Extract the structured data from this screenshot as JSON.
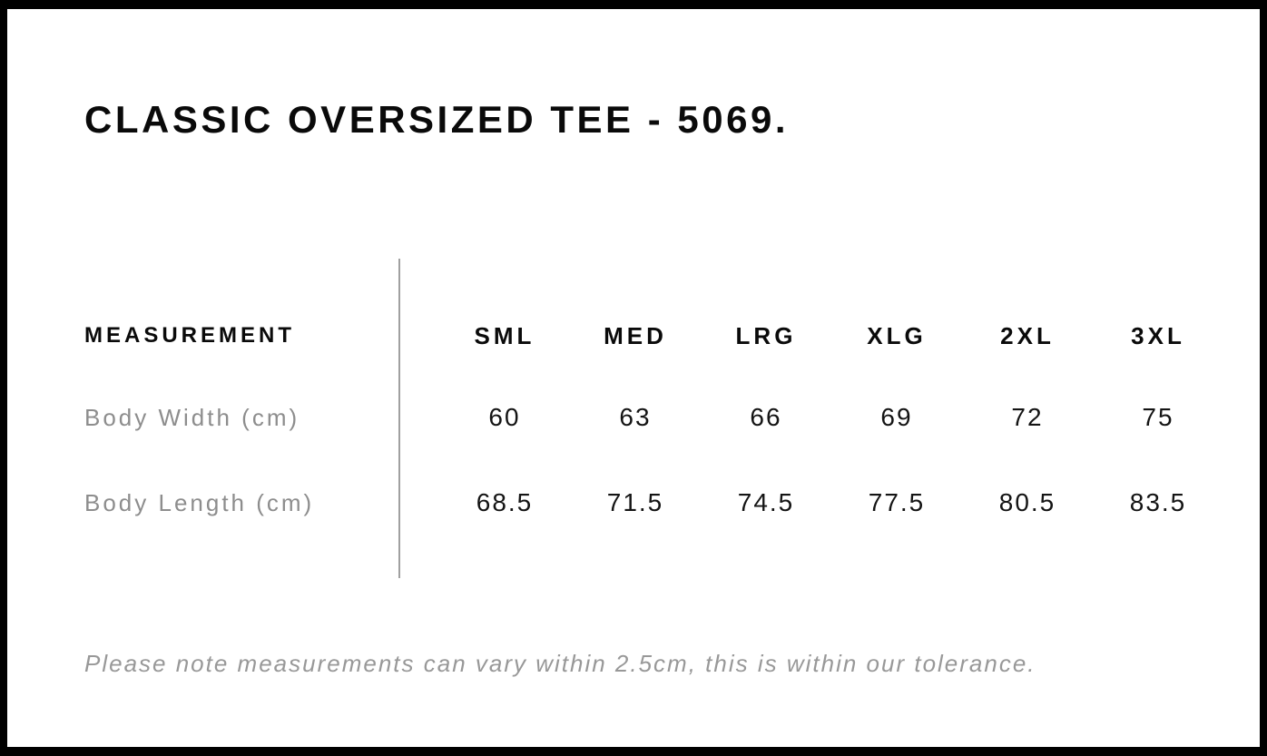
{
  "header": {
    "title": "CLASSIC OVERSIZED TEE - 5069."
  },
  "table": {
    "measurement_header": "MEASUREMENT",
    "sizes": [
      "SML",
      "MED",
      "LRG",
      "XLG",
      "2XL",
      "3XL"
    ],
    "rows": [
      {
        "label": "Body Width (cm)",
        "values": [
          "60",
          "63",
          "66",
          "69",
          "72",
          "75"
        ]
      },
      {
        "label": "Body Length (cm)",
        "values": [
          "68.5",
          "71.5",
          "74.5",
          "77.5",
          "80.5",
          "83.5"
        ]
      }
    ]
  },
  "footer": {
    "note": "Please note measurements can vary within 2.5cm, this is within our tolerance."
  },
  "colors": {
    "frame": "#000000",
    "text": "#0a0a0a",
    "muted_label": "#8d8d8d",
    "note_text": "#989898",
    "divider": "#a0a0a0",
    "background": "#ffffff"
  }
}
